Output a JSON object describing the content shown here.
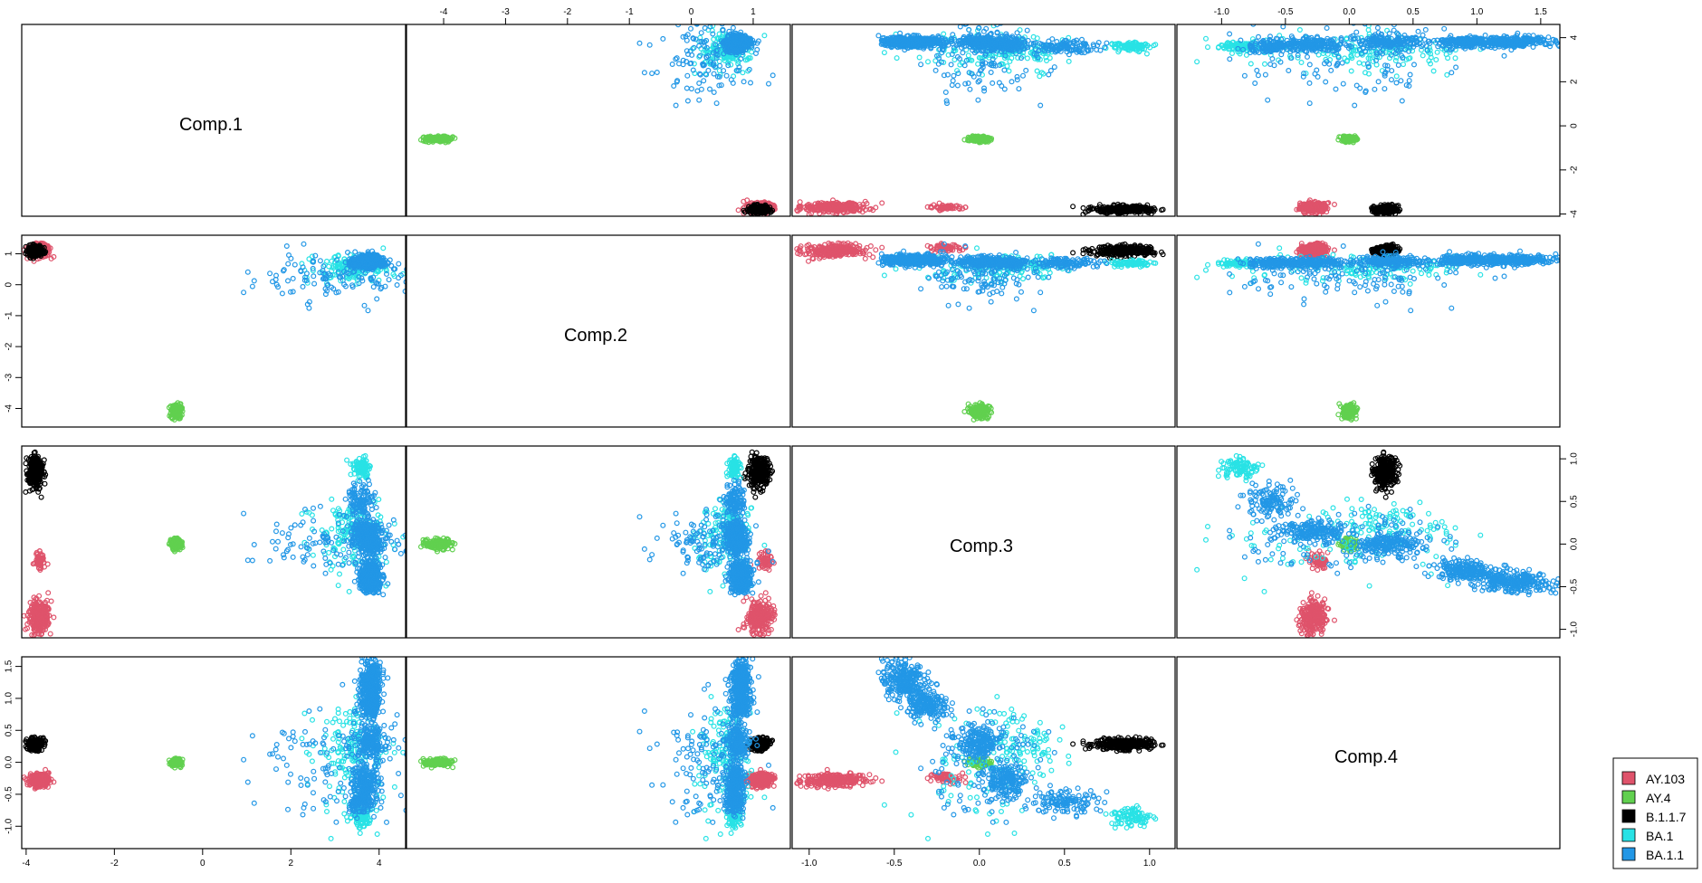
{
  "chart_data": {
    "type": "scatter",
    "kind": "pairs-matrix",
    "variables": [
      "Comp.1",
      "Comp.2",
      "Comp.3",
      "Comp.4"
    ],
    "ranges": {
      "Comp.1": [
        -4.1,
        4.6
      ],
      "Comp.2": [
        -4.6,
        1.6
      ],
      "Comp.3": [
        -1.1,
        1.15
      ],
      "Comp.4": [
        -1.35,
        1.65
      ]
    },
    "ticks": {
      "Comp.1": [
        "-4",
        "-2",
        "0",
        "2",
        "4"
      ],
      "Comp.2": [
        "-4",
        "-3",
        "-2",
        "-1",
        "0",
        "1"
      ],
      "Comp.3": [
        "-1.0",
        "-0.5",
        "0.0",
        "0.5",
        "1.0"
      ],
      "Comp.4": [
        "-1.0",
        "-0.5",
        "0.0",
        "0.5",
        "1.0",
        "1.5"
      ]
    },
    "grid": false,
    "legend_position": "bottom-right",
    "series": [
      {
        "name": "AY.103",
        "color": "#DF536B",
        "cluster_means": [
          [
            -3.7,
            1.1,
            -0.85,
            -0.28
          ],
          [
            -3.7,
            1.2,
            -0.2,
            -0.25
          ]
        ],
        "cluster_sd": [
          [
            0.12,
            0.1,
            0.1,
            0.05
          ],
          [
            0.06,
            0.06,
            0.05,
            0.04
          ]
        ],
        "cluster_n": [
          260,
          60
        ]
      },
      {
        "name": "AY.4",
        "color": "#61D04F",
        "cluster_means": [
          [
            -0.6,
            -4.1,
            0.0,
            0.0
          ]
        ],
        "cluster_sd": [
          [
            0.06,
            0.12,
            0.03,
            0.03
          ]
        ],
        "cluster_n": [
          150
        ]
      },
      {
        "name": "B.1.1.7",
        "color": "#000000",
        "cluster_means": [
          [
            -3.8,
            1.1,
            0.85,
            0.28
          ]
        ],
        "cluster_sd": [
          [
            0.08,
            0.08,
            0.08,
            0.04
          ]
        ],
        "cluster_n": [
          320
        ]
      },
      {
        "name": "BA.1",
        "color": "#28E2E5",
        "cluster_means": [
          [
            3.6,
            0.7,
            0.9,
            -0.85
          ],
          [
            3.5,
            0.6,
            0.25,
            0.3
          ],
          [
            3.3,
            0.5,
            0.0,
            0.0
          ]
        ],
        "cluster_sd": [
          [
            0.1,
            0.05,
            0.06,
            0.08
          ],
          [
            0.3,
            0.15,
            0.1,
            0.25
          ],
          [
            0.5,
            0.25,
            0.2,
            0.5
          ]
        ],
        "cluster_n": [
          90,
          80,
          90
        ]
      },
      {
        "name": "BA.1.1",
        "color": "#2297E6",
        "cluster_means": [
          [
            3.8,
            0.8,
            -0.45,
            1.3
          ],
          [
            3.8,
            0.8,
            -0.3,
            0.9
          ],
          [
            3.8,
            0.75,
            0.0,
            0.3
          ],
          [
            3.7,
            0.7,
            0.15,
            -0.3
          ],
          [
            3.6,
            0.7,
            0.5,
            -0.6
          ],
          [
            2.8,
            0.2,
            0.0,
            0.0
          ]
        ],
        "cluster_sd": [
          [
            0.12,
            0.08,
            0.06,
            0.15
          ],
          [
            0.12,
            0.08,
            0.06,
            0.12
          ],
          [
            0.15,
            0.08,
            0.06,
            0.12
          ],
          [
            0.15,
            0.08,
            0.06,
            0.12
          ],
          [
            0.15,
            0.08,
            0.1,
            0.1
          ],
          [
            0.9,
            0.4,
            0.2,
            0.4
          ]
        ],
        "cluster_n": [
          260,
          200,
          180,
          180,
          120,
          120
        ]
      }
    ]
  }
}
